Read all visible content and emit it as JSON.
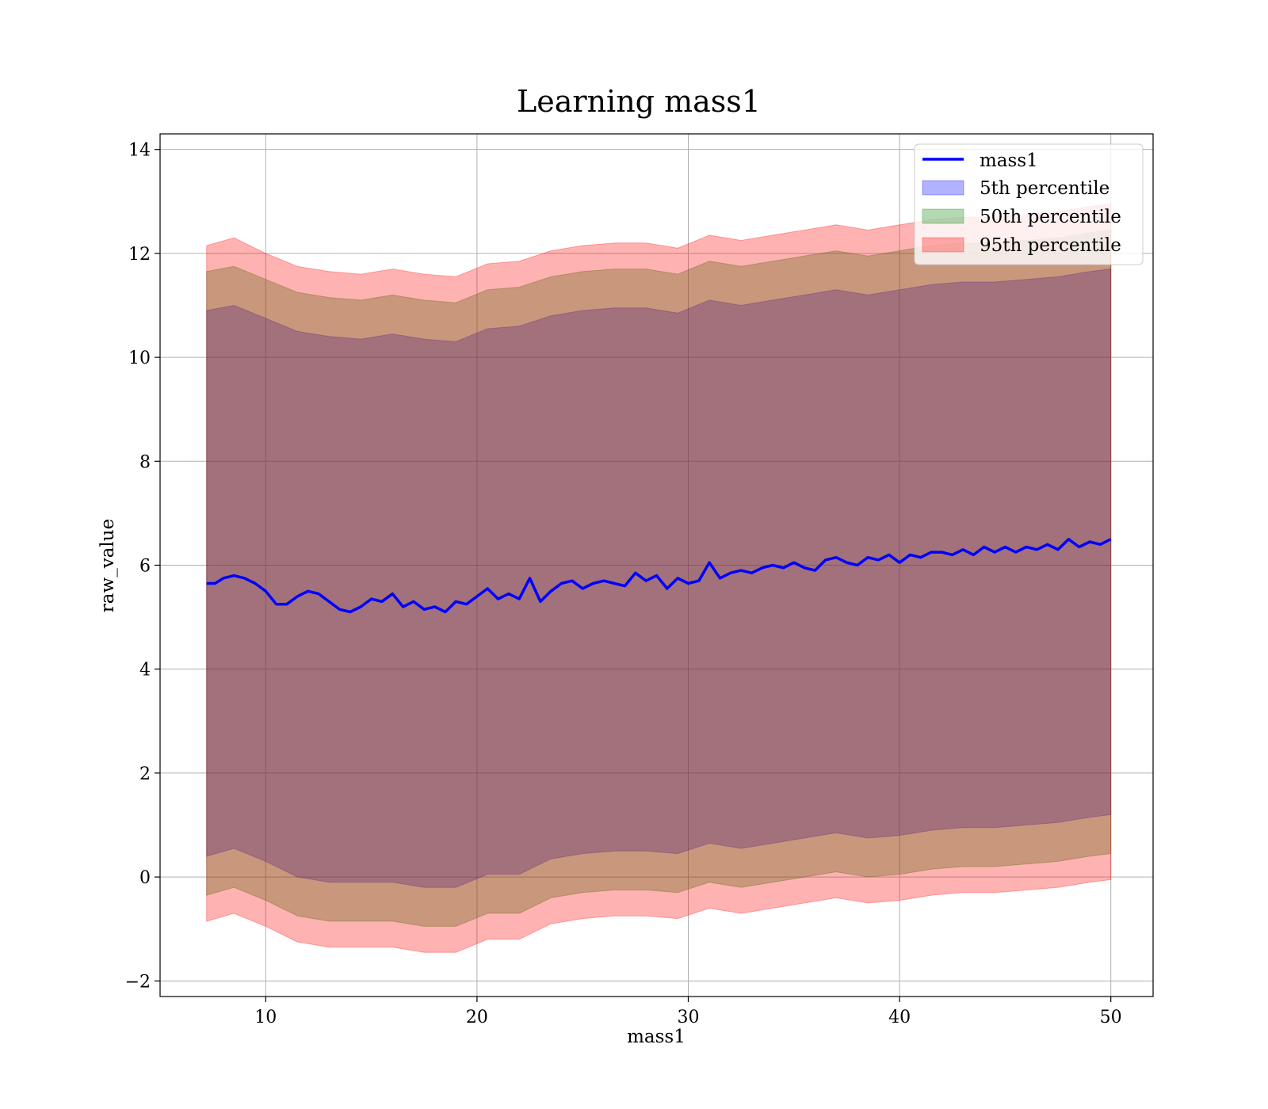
{
  "chart_data": {
    "type": "line",
    "title": "Learning mass1",
    "xlabel": "mass1",
    "ylabel": "raw_value",
    "xlim": [
      5.0,
      52.0
    ],
    "ylim": [
      -2.3,
      14.3
    ],
    "xticks": [
      10,
      20,
      30,
      40,
      50
    ],
    "yticks": [
      -2,
      0,
      2,
      4,
      6,
      8,
      10,
      12,
      14
    ],
    "grid": true,
    "legend_position": "upper right",
    "series": [
      {
        "name": "mass1",
        "kind": "line",
        "color": "#0000ff",
        "x": [
          7.2,
          7.6,
          8.0,
          8.5,
          9.0,
          9.5,
          10.0,
          10.5,
          11.0,
          11.5,
          12.0,
          12.5,
          13.0,
          13.5,
          14.0,
          14.5,
          15.0,
          15.5,
          16.0,
          16.5,
          17.0,
          17.5,
          18.0,
          18.5,
          19.0,
          19.5,
          20.0,
          20.5,
          21.0,
          21.5,
          22.0,
          22.5,
          23.0,
          23.5,
          24.0,
          24.5,
          25.0,
          25.5,
          26.0,
          26.5,
          27.0,
          27.5,
          28.0,
          28.5,
          29.0,
          29.5,
          30.0,
          30.5,
          31.0,
          31.5,
          32.0,
          32.5,
          33.0,
          33.5,
          34.0,
          34.5,
          35.0,
          35.5,
          36.0,
          36.5,
          37.0,
          37.5,
          38.0,
          38.5,
          39.0,
          39.5,
          40.0,
          40.5,
          41.0,
          41.5,
          42.0,
          42.5,
          43.0,
          43.5,
          44.0,
          44.5,
          45.0,
          45.5,
          46.0,
          46.5,
          47.0,
          47.5,
          48.0,
          48.5,
          49.0,
          49.5,
          50.0
        ],
        "y": [
          5.65,
          5.65,
          5.75,
          5.8,
          5.75,
          5.65,
          5.5,
          5.25,
          5.25,
          5.4,
          5.5,
          5.45,
          5.3,
          5.15,
          5.1,
          5.2,
          5.35,
          5.3,
          5.45,
          5.2,
          5.3,
          5.15,
          5.2,
          5.1,
          5.3,
          5.25,
          5.4,
          5.55,
          5.35,
          5.45,
          5.35,
          5.75,
          5.3,
          5.5,
          5.65,
          5.7,
          5.55,
          5.65,
          5.7,
          5.65,
          5.6,
          5.85,
          5.7,
          5.8,
          5.55,
          5.75,
          5.65,
          5.7,
          6.05,
          5.75,
          5.85,
          5.9,
          5.85,
          5.95,
          6.0,
          5.95,
          6.05,
          5.95,
          5.9,
          6.1,
          6.15,
          6.05,
          6.0,
          6.15,
          6.1,
          6.2,
          6.05,
          6.2,
          6.15,
          6.25,
          6.25,
          6.2,
          6.3,
          6.2,
          6.35,
          6.25,
          6.35,
          6.25,
          6.35,
          6.3,
          6.4,
          6.3,
          6.5,
          6.35,
          6.45,
          6.4,
          6.5
        ]
      },
      {
        "name": "5th percentile",
        "kind": "band",
        "color": "#0000ff",
        "x": [
          7.2,
          8.5,
          10.0,
          11.5,
          13.0,
          14.5,
          16.0,
          17.5,
          19.0,
          20.5,
          22.0,
          23.5,
          25.0,
          26.5,
          28.0,
          29.5,
          31.0,
          32.5,
          34.0,
          35.5,
          37.0,
          38.5,
          40.0,
          41.5,
          43.0,
          44.5,
          46.0,
          47.5,
          49.0,
          50.0
        ],
        "lower": [
          0.4,
          0.55,
          0.3,
          0.0,
          -0.1,
          -0.1,
          -0.1,
          -0.2,
          -0.2,
          0.05,
          0.05,
          0.35,
          0.45,
          0.5,
          0.5,
          0.45,
          0.65,
          0.55,
          0.65,
          0.75,
          0.85,
          0.75,
          0.8,
          0.9,
          0.95,
          0.95,
          1.0,
          1.05,
          1.15,
          1.2
        ],
        "upper": [
          10.9,
          11.0,
          10.75,
          10.5,
          10.4,
          10.35,
          10.45,
          10.35,
          10.3,
          10.55,
          10.6,
          10.8,
          10.9,
          10.95,
          10.95,
          10.85,
          11.1,
          11.0,
          11.1,
          11.2,
          11.3,
          11.2,
          11.3,
          11.4,
          11.45,
          11.45,
          11.5,
          11.55,
          11.65,
          11.7
        ]
      },
      {
        "name": "50th percentile",
        "kind": "band",
        "color": "#008000",
        "x": [
          7.2,
          8.5,
          10.0,
          11.5,
          13.0,
          14.5,
          16.0,
          17.5,
          19.0,
          20.5,
          22.0,
          23.5,
          25.0,
          26.5,
          28.0,
          29.5,
          31.0,
          32.5,
          34.0,
          35.5,
          37.0,
          38.5,
          40.0,
          41.5,
          43.0,
          44.5,
          46.0,
          47.5,
          49.0,
          50.0
        ],
        "lower": [
          -0.35,
          -0.2,
          -0.45,
          -0.75,
          -0.85,
          -0.85,
          -0.85,
          -0.95,
          -0.95,
          -0.7,
          -0.7,
          -0.4,
          -0.3,
          -0.25,
          -0.25,
          -0.3,
          -0.1,
          -0.2,
          -0.1,
          0.0,
          0.1,
          0.0,
          0.05,
          0.15,
          0.2,
          0.2,
          0.25,
          0.3,
          0.4,
          0.45
        ],
        "upper": [
          11.65,
          11.75,
          11.5,
          11.25,
          11.15,
          11.1,
          11.2,
          11.1,
          11.05,
          11.3,
          11.35,
          11.55,
          11.65,
          11.7,
          11.7,
          11.6,
          11.85,
          11.75,
          11.85,
          11.95,
          12.05,
          11.95,
          12.05,
          12.15,
          12.2,
          12.2,
          12.25,
          12.3,
          12.4,
          12.45
        ]
      },
      {
        "name": "95th percentile",
        "kind": "band",
        "color": "#ff0000",
        "x": [
          7.2,
          8.5,
          10.0,
          11.5,
          13.0,
          14.5,
          16.0,
          17.5,
          19.0,
          20.5,
          22.0,
          23.5,
          25.0,
          26.5,
          28.0,
          29.5,
          31.0,
          32.5,
          34.0,
          35.5,
          37.0,
          38.5,
          40.0,
          41.5,
          43.0,
          44.5,
          46.0,
          47.5,
          49.0,
          50.0
        ],
        "lower": [
          -0.85,
          -0.7,
          -0.95,
          -1.25,
          -1.35,
          -1.35,
          -1.35,
          -1.45,
          -1.45,
          -1.2,
          -1.2,
          -0.9,
          -0.8,
          -0.75,
          -0.75,
          -0.8,
          -0.6,
          -0.7,
          -0.6,
          -0.5,
          -0.4,
          -0.5,
          -0.45,
          -0.35,
          -0.3,
          -0.3,
          -0.25,
          -0.2,
          -0.1,
          -0.05
        ],
        "upper": [
          12.15,
          12.3,
          12.0,
          11.75,
          11.65,
          11.6,
          11.7,
          11.6,
          11.55,
          11.8,
          11.85,
          12.05,
          12.15,
          12.2,
          12.2,
          12.1,
          12.35,
          12.25,
          12.35,
          12.45,
          12.55,
          12.45,
          12.55,
          12.65,
          12.7,
          12.7,
          12.75,
          12.8,
          12.9,
          12.95
        ]
      }
    ]
  }
}
